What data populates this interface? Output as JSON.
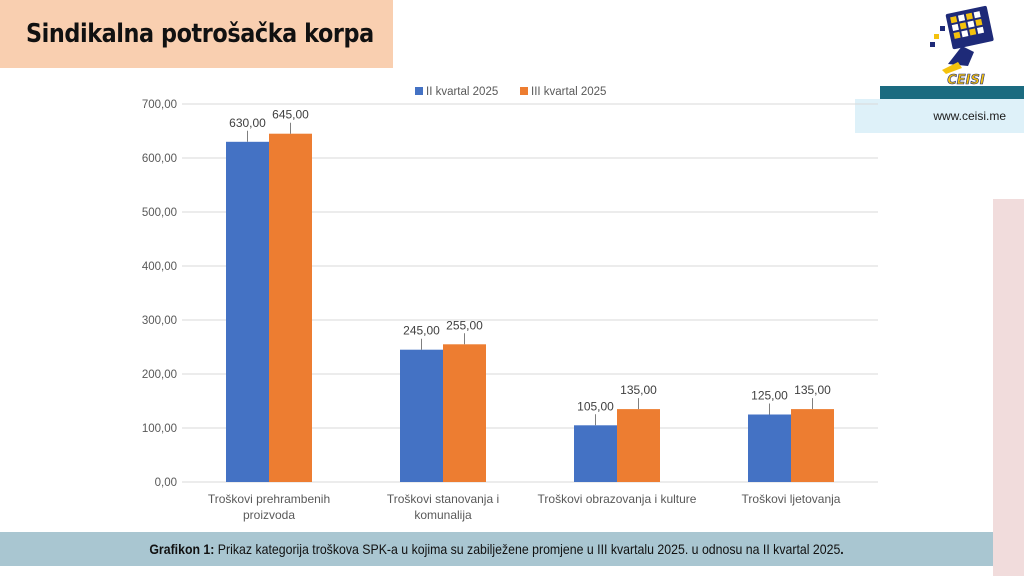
{
  "header": {
    "title": "Sindikalna potrošačka korpa"
  },
  "brand": {
    "logo_text": "CEISI",
    "website": "www.ceisi.me"
  },
  "colors": {
    "series_1": "#4472c4",
    "series_2": "#ed7d31",
    "gridline": "#d9d9d9"
  },
  "chart_data": {
    "type": "bar",
    "categories": [
      [
        "Troškovi prehrambenih",
        "proizvoda"
      ],
      [
        "Troškovi stanovanja i",
        "komunalija"
      ],
      [
        "Troškovi obrazovanja i kulture"
      ],
      [
        "Troškovi ljetovanja"
      ]
    ],
    "series": [
      {
        "name": "II kvartal 2025",
        "values": [
          630,
          245,
          105,
          125
        ],
        "labels": [
          "630,00",
          "245,00",
          "105,00",
          "125,00"
        ]
      },
      {
        "name": "III kvartal 2025",
        "values": [
          645,
          255,
          135,
          135
        ],
        "labels": [
          "645,00",
          "255,00",
          "135,00",
          "135,00"
        ]
      }
    ],
    "ylim": [
      0,
      700
    ],
    "yticks": [
      0,
      100,
      200,
      300,
      400,
      500,
      600,
      700
    ],
    "ytick_labels": [
      "0,00",
      "100,00",
      "200,00",
      "300,00",
      "400,00",
      "500,00",
      "600,00",
      "700,00"
    ],
    "legend_position": "top-center",
    "grid": true
  },
  "caption": {
    "label": "Grafikon 1:",
    "text": " Prikaz kategorija troškova SPK-a u kojima su zabilježene promjene u III kvartalu 2025. u odnosu na II kvartal 2025",
    "end": "."
  }
}
